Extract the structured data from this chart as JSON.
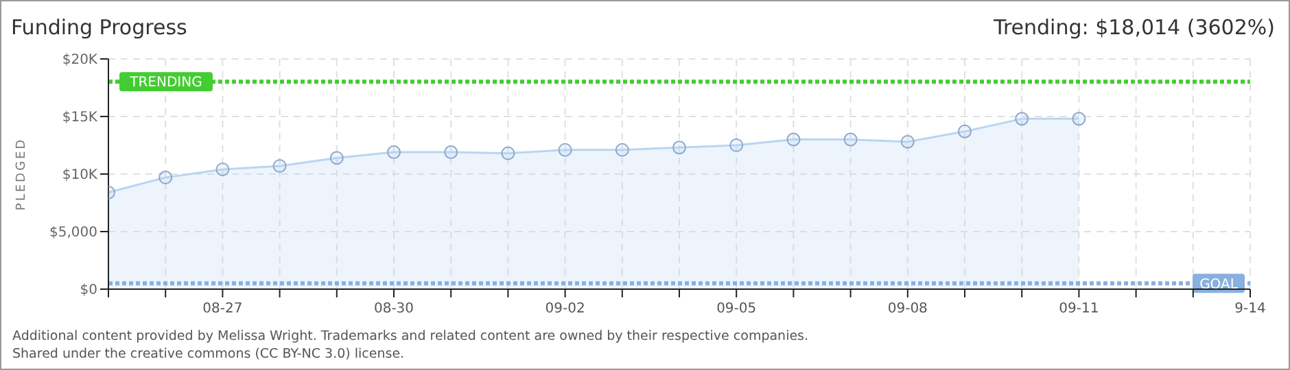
{
  "chart_data": {
    "type": "area",
    "title": "Funding Progress",
    "annotations": [
      "Trending:  $18,014 (3602%)",
      "Additional content provided by Melissa Wright. Trademarks and related content are owned by their respective companies.",
      "Shared under the creative commons (CC BY-NC 3.0) license."
    ],
    "ylabel": "PLEDGED",
    "x": [
      "--08-25",
      "--08-26",
      "--08-27",
      "--08-28",
      "--08-29",
      "--08-30",
      "--08-31",
      "--09-01",
      "--09-02",
      "--09-03",
      "--09-04",
      "--09-05",
      "--09-06",
      "--09-07",
      "--09-08",
      "--09-09",
      "--09-10",
      "--09-11"
    ],
    "series": [
      {
        "color": "#b9d5f2",
        "values": [
          8400,
          9700,
          10400,
          10700,
          11400,
          11900,
          11900,
          11800,
          12100,
          12100,
          12300,
          12500,
          13000,
          13000,
          12800,
          13700,
          14800,
          14800
        ]
      }
    ],
    "xlim": [
      "--08-25",
      "--09-14"
    ],
    "xticks": [
      {
        "value": "--08-25",
        "label": null
      },
      {
        "value": "--08-26",
        "label": null
      },
      {
        "value": "--08-27",
        "label": "08-27"
      },
      {
        "value": "--08-28",
        "label": null
      },
      {
        "value": "--08-29",
        "label": null
      },
      {
        "value": "--08-30",
        "label": "08-30"
      },
      {
        "value": "--08-31",
        "label": null
      },
      {
        "value": "--09-01",
        "label": null
      },
      {
        "value": "--09-02",
        "label": "09-02"
      },
      {
        "value": "--09-03",
        "label": null
      },
      {
        "value": "--09-04",
        "label": null
      },
      {
        "value": "--09-05",
        "label": "09-05"
      },
      {
        "value": "--09-06",
        "label": null
      },
      {
        "value": "--09-07",
        "label": null
      },
      {
        "value": "--09-08",
        "label": "09-08"
      },
      {
        "value": "--09-09",
        "label": null
      },
      {
        "value": "--09-10",
        "label": null
      },
      {
        "value": "--09-11",
        "label": "09-11"
      },
      {
        "value": "--09-12",
        "label": null
      },
      {
        "value": "--09-13",
        "label": null
      },
      {
        "value": "--09-14",
        "label": "9-14"
      }
    ],
    "ylim": [
      0,
      20000
    ],
    "yticks": [
      {
        "value": 0,
        "label": "$0"
      },
      {
        "value": 5000,
        "label": "$5,000"
      },
      {
        "value": 10000,
        "label": "$10K"
      },
      {
        "value": 15000,
        "label": "$15K"
      },
      {
        "value": 20000,
        "label": "$20K"
      }
    ],
    "ref_lines": [
      {
        "axis": "y",
        "value": 18014,
        "label": "TRENDING",
        "color": "#44cc33",
        "line_style": "dotted"
      },
      {
        "axis": "y",
        "value": 500,
        "label": "GOAL",
        "color": "#88b0e0",
        "line_style": "dotted"
      }
    ],
    "grid": true,
    "marker": "circle"
  }
}
